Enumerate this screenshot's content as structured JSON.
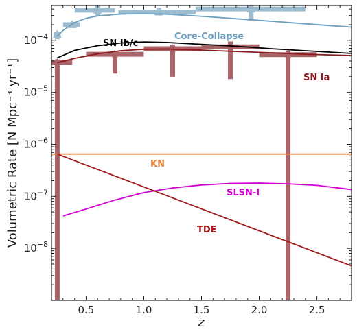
{
  "chart_data": {
    "type": "line",
    "xlabel": "z",
    "ylabel": "Volumetric Rate [N Mpc⁻³ yr⁻¹]",
    "xlim": [
      0.2,
      2.8
    ],
    "ylim_log10": [
      -9.0,
      -3.33
    ],
    "y_scale": "log",
    "x_ticks": [
      0.5,
      1.0,
      1.5,
      2.0,
      2.5
    ],
    "x_tick_labels": [
      "0.5",
      "1.0",
      "1.5",
      "2.0",
      "2.5"
    ],
    "y_ticks_exp": [
      -8,
      -7,
      -6,
      -5,
      -4
    ],
    "grid": false,
    "series": [
      {
        "name": "Core-Collapse",
        "color": "#6b9fc0",
        "x": [
          0.25,
          0.3,
          0.4,
          0.5,
          0.6,
          0.8,
          1.0,
          1.2,
          1.4,
          1.6,
          1.8,
          2.0,
          2.2,
          2.4,
          2.6,
          2.8
        ],
        "y": [
          0.00012,
          0.000155,
          0.00022,
          0.000265,
          0.000295,
          0.00032,
          0.000325,
          0.000318,
          0.0003,
          0.00028,
          0.00026,
          0.000242,
          0.000225,
          0.000208,
          0.000193,
          0.00018
        ]
      },
      {
        "name": "SN Ib/c",
        "color": "#000000",
        "x": [
          0.25,
          0.4,
          0.6,
          0.8,
          1.0,
          1.2,
          1.5,
          1.8,
          2.1,
          2.4,
          2.8
        ],
        "y": [
          4.6e-05,
          6.4e-05,
          7.9e-05,
          8.9e-05,
          9.3e-05,
          9.1e-05,
          8.4e-05,
          7.7e-05,
          6.9e-05,
          6.3e-05,
          5.6e-05
        ]
      },
      {
        "name": "SN Ia",
        "color": "#8b1a1f",
        "x": [
          0.25,
          0.4,
          0.6,
          0.8,
          1.0,
          1.2,
          1.5,
          1.8,
          2.1,
          2.4,
          2.8
        ],
        "y": [
          3.7e-05,
          4.5e-05,
          5.5e-05,
          6.3e-05,
          6.75e-05,
          6.8e-05,
          6.5e-05,
          6.1e-05,
          5.75e-05,
          5.4e-05,
          5.1e-05
        ]
      },
      {
        "name": "KN",
        "color": "#e8833a",
        "x": [
          0.2,
          2.8
        ],
        "y": [
          6.5e-07,
          6.5e-07
        ]
      },
      {
        "name": "SLSN-I",
        "color": "#d400d4",
        "x": [
          0.3,
          0.5,
          0.75,
          1.0,
          1.25,
          1.5,
          1.75,
          2.0,
          2.25,
          2.5,
          2.8
        ],
        "y": [
          4.2e-08,
          5.7e-08,
          8.5e-08,
          1.18e-07,
          1.45e-07,
          1.65e-07,
          1.77e-07,
          1.8e-07,
          1.74e-07,
          1.62e-07,
          1.35e-07
        ]
      },
      {
        "name": "TDE",
        "color": "#a11a1a",
        "x": [
          0.25,
          2.8
        ],
        "y": [
          6.5e-07,
          4.6e-09
        ]
      }
    ],
    "observations": [
      {
        "name": "Core-Collapse",
        "color": "#9fbdd0",
        "marker": "triangle",
        "points": [
          {
            "x": 0.25,
            "y": 0.00013,
            "xerr": [
              0.22,
              0.28
            ],
            "yerr": [
              0.000105,
              0.000145
            ]
          },
          {
            "x": 0.38,
            "y": 0.0002,
            "xerr": [
              0.3,
              0.45
            ],
            "yerr": [
              0.000175,
              0.000225
            ]
          },
          {
            "x": 0.6,
            "y": 0.00038,
            "xerr": [
              0.4,
              0.75
            ],
            "yerr": [
              0.0003,
              0.00047
            ]
          },
          {
            "x": 1.13,
            "y": 0.00035,
            "xerr": [
              0.78,
              1.45
            ],
            "yerr": [
              0.0003,
              0.00042
            ]
          },
          {
            "x": 1.93,
            "y": 0.0004,
            "xerr": [
              1.45,
              2.4
            ],
            "yerr": [
              0.00024,
              0.0005
            ]
          }
        ]
      },
      {
        "name": "SN Ia",
        "color": "#a86468",
        "marker": "star",
        "points": [
          {
            "x": 0.25,
            "y": 3.7e-05,
            "xerr": [
              0.2,
              0.38
            ],
            "yerr": [
              1e-09,
              4.3e-05
            ]
          },
          {
            "x": 0.75,
            "y": 5.4e-05,
            "xerr": [
              0.5,
              1.0
            ],
            "yerr": [
              2.3e-05,
              6.2e-05
            ]
          },
          {
            "x": 1.25,
            "y": 6.9e-05,
            "xerr": [
              1.0,
              1.5
            ],
            "yerr": [
              2e-05,
              8.3e-05
            ]
          },
          {
            "x": 1.75,
            "y": 7.5e-05,
            "xerr": [
              1.5,
              2.0
            ],
            "yerr": [
              1.8e-05,
              9.5e-05
            ]
          },
          {
            "x": 2.25,
            "y": 5.3e-05,
            "xerr": [
              2.0,
              2.5
            ],
            "yerr": [
              1e-09,
              6.3e-05
            ]
          }
        ]
      }
    ]
  }
}
